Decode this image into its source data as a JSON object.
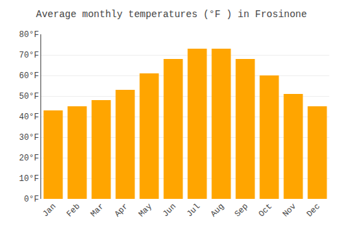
{
  "chart_data": {
    "type": "bar",
    "title": "Average monthly temperatures (°F ) in Frosinone",
    "categories": [
      "Jan",
      "Feb",
      "Mar",
      "Apr",
      "May",
      "Jun",
      "Jul",
      "Aug",
      "Sep",
      "Oct",
      "Nov",
      "Dec"
    ],
    "values": [
      43,
      45,
      48,
      53,
      61,
      68,
      73,
      73,
      68,
      60,
      51,
      45
    ],
    "color": "#FFA500",
    "ylim": [
      0,
      80
    ],
    "yticks": [
      {
        "value": 0,
        "label": "0°F"
      },
      {
        "value": 10,
        "label": "10°F"
      },
      {
        "value": 20,
        "label": "20°F"
      },
      {
        "value": 30,
        "label": "30°F"
      },
      {
        "value": 40,
        "label": "40°F"
      },
      {
        "value": 50,
        "label": "50°F"
      },
      {
        "value": 60,
        "label": "60°F"
      },
      {
        "value": 70,
        "label": "70°F"
      },
      {
        "value": 80,
        "label": "80°F"
      }
    ],
    "grid": true
  }
}
